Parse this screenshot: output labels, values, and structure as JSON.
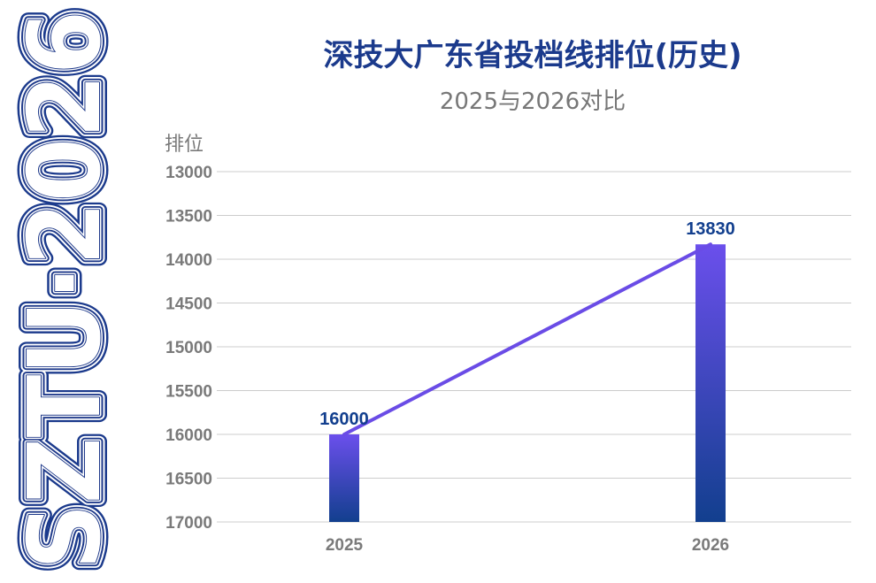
{
  "watermark": {
    "text": "SZTU·2026",
    "color": "#1f3a8a"
  },
  "colors": {
    "title": "#1b3a8c",
    "subtitle": "#777777",
    "axis_text": "#7a7a7a",
    "gridline": "#cccccc",
    "line": "#6a4ce6",
    "bar_top": "#6b4fec",
    "bar_bottom": "#123f8e",
    "data_label": "#123f8e"
  },
  "chart_data": {
    "type": "bar",
    "title": "深技大广东省投档线排位(历史)",
    "subtitle": "2025与2026对比",
    "ylabel": "排位",
    "xlabel": "",
    "y_inverted": true,
    "ylim": [
      13000,
      17000
    ],
    "yticks": [
      13000,
      13500,
      14000,
      14500,
      15000,
      15500,
      16000,
      16500,
      17000
    ],
    "categories": [
      "2025",
      "2026"
    ],
    "values": [
      16000,
      13830
    ],
    "overlay": "line connecting bar tops",
    "grid": true,
    "legend": "none"
  }
}
